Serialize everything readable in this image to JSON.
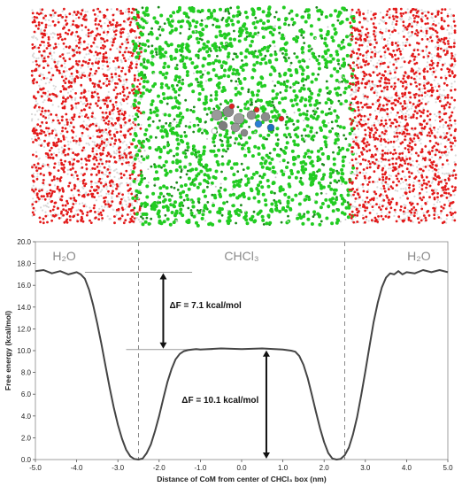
{
  "simulation_image": {
    "colors": {
      "water_oxygen": "#e31a1a",
      "water_hydrogen": "#d9d9d9",
      "chloroform": "#22cc22",
      "solute": "#8c8c8c"
    }
  },
  "chart_data": {
    "type": "line",
    "xlabel": "Distance of CoM from center of CHCl₃ box (nm)",
    "ylabel": "Free energy (kcal/mol)",
    "xlim": [
      -5.0,
      5.0
    ],
    "ylim": [
      0.0,
      20.0
    ],
    "x_ticks": [
      "-5.0",
      "-4.0",
      "-3.0",
      "-2.0",
      "-1.0",
      "0.0",
      "1.0",
      "2.0",
      "3.0",
      "4.0",
      "5.0"
    ],
    "y_ticks": [
      "0.0",
      "2.0",
      "4.0",
      "6.0",
      "8.0",
      "10.0",
      "12.0",
      "14.0",
      "16.0",
      "18.0",
      "20.0"
    ],
    "grid": false,
    "series": [
      {
        "color": "#444444",
        "x": [
          -5.0,
          -4.8,
          -4.6,
          -4.4,
          -4.2,
          -4.0,
          -3.9,
          -3.8,
          -3.7,
          -3.6,
          -3.5,
          -3.4,
          -3.3,
          -3.2,
          -3.1,
          -3.0,
          -2.9,
          -2.8,
          -2.7,
          -2.6,
          -2.5,
          -2.4,
          -2.3,
          -2.2,
          -2.1,
          -2.0,
          -1.9,
          -1.8,
          -1.7,
          -1.6,
          -1.5,
          -1.4,
          -1.3,
          -1.2,
          -1.1,
          -1.0,
          -0.5,
          0.0,
          0.5,
          1.0,
          1.1,
          1.2,
          1.3,
          1.4,
          1.5,
          1.6,
          1.7,
          1.8,
          1.9,
          2.0,
          2.1,
          2.2,
          2.3,
          2.4,
          2.5,
          2.6,
          2.7,
          2.8,
          2.9,
          3.0,
          3.1,
          3.2,
          3.3,
          3.4,
          3.5,
          3.6,
          3.7,
          3.8,
          3.9,
          4.0,
          4.2,
          4.4,
          4.6,
          4.8,
          5.0
        ],
        "y": [
          17.3,
          17.4,
          17.1,
          17.3,
          17.0,
          17.2,
          17.0,
          16.6,
          15.6,
          14.2,
          12.5,
          10.6,
          8.6,
          6.6,
          4.8,
          3.2,
          1.9,
          0.9,
          0.3,
          0.05,
          0.0,
          0.1,
          0.6,
          1.4,
          2.6,
          4.0,
          5.6,
          7.1,
          8.3,
          9.2,
          9.7,
          9.95,
          10.05,
          10.1,
          10.15,
          10.1,
          10.2,
          10.15,
          10.2,
          10.1,
          10.05,
          10.0,
          9.9,
          9.5,
          8.7,
          7.5,
          6.0,
          4.4,
          2.9,
          1.6,
          0.6,
          0.1,
          0.0,
          0.05,
          0.4,
          1.1,
          2.3,
          3.9,
          5.9,
          8.1,
          10.4,
          12.6,
          14.4,
          15.8,
          16.7,
          17.1,
          17.0,
          17.3,
          17.0,
          17.2,
          17.1,
          17.4,
          17.2,
          17.4,
          17.2
        ]
      }
    ],
    "boundaries": [
      -2.5,
      2.5
    ],
    "regions": [
      {
        "label": "H₂O",
        "x": -4.3
      },
      {
        "label": "CHCl₃",
        "x": 0.0
      },
      {
        "label": "H₂O",
        "x": 4.3
      }
    ],
    "annotations": [
      {
        "text": "ΔF = 7.1 kcal/mol",
        "from": 10.1,
        "to": 17.2,
        "x": -1.9
      },
      {
        "text": "ΔF = 10.1 kcal/mol",
        "from": 0.0,
        "to": 10.1,
        "x": 0.6
      }
    ],
    "reference_lines": [
      {
        "y": 17.2,
        "x_from": -3.8,
        "x_to": -1.2
      },
      {
        "y": 10.1,
        "x_from": -2.8,
        "x_to": -0.7
      }
    ]
  }
}
